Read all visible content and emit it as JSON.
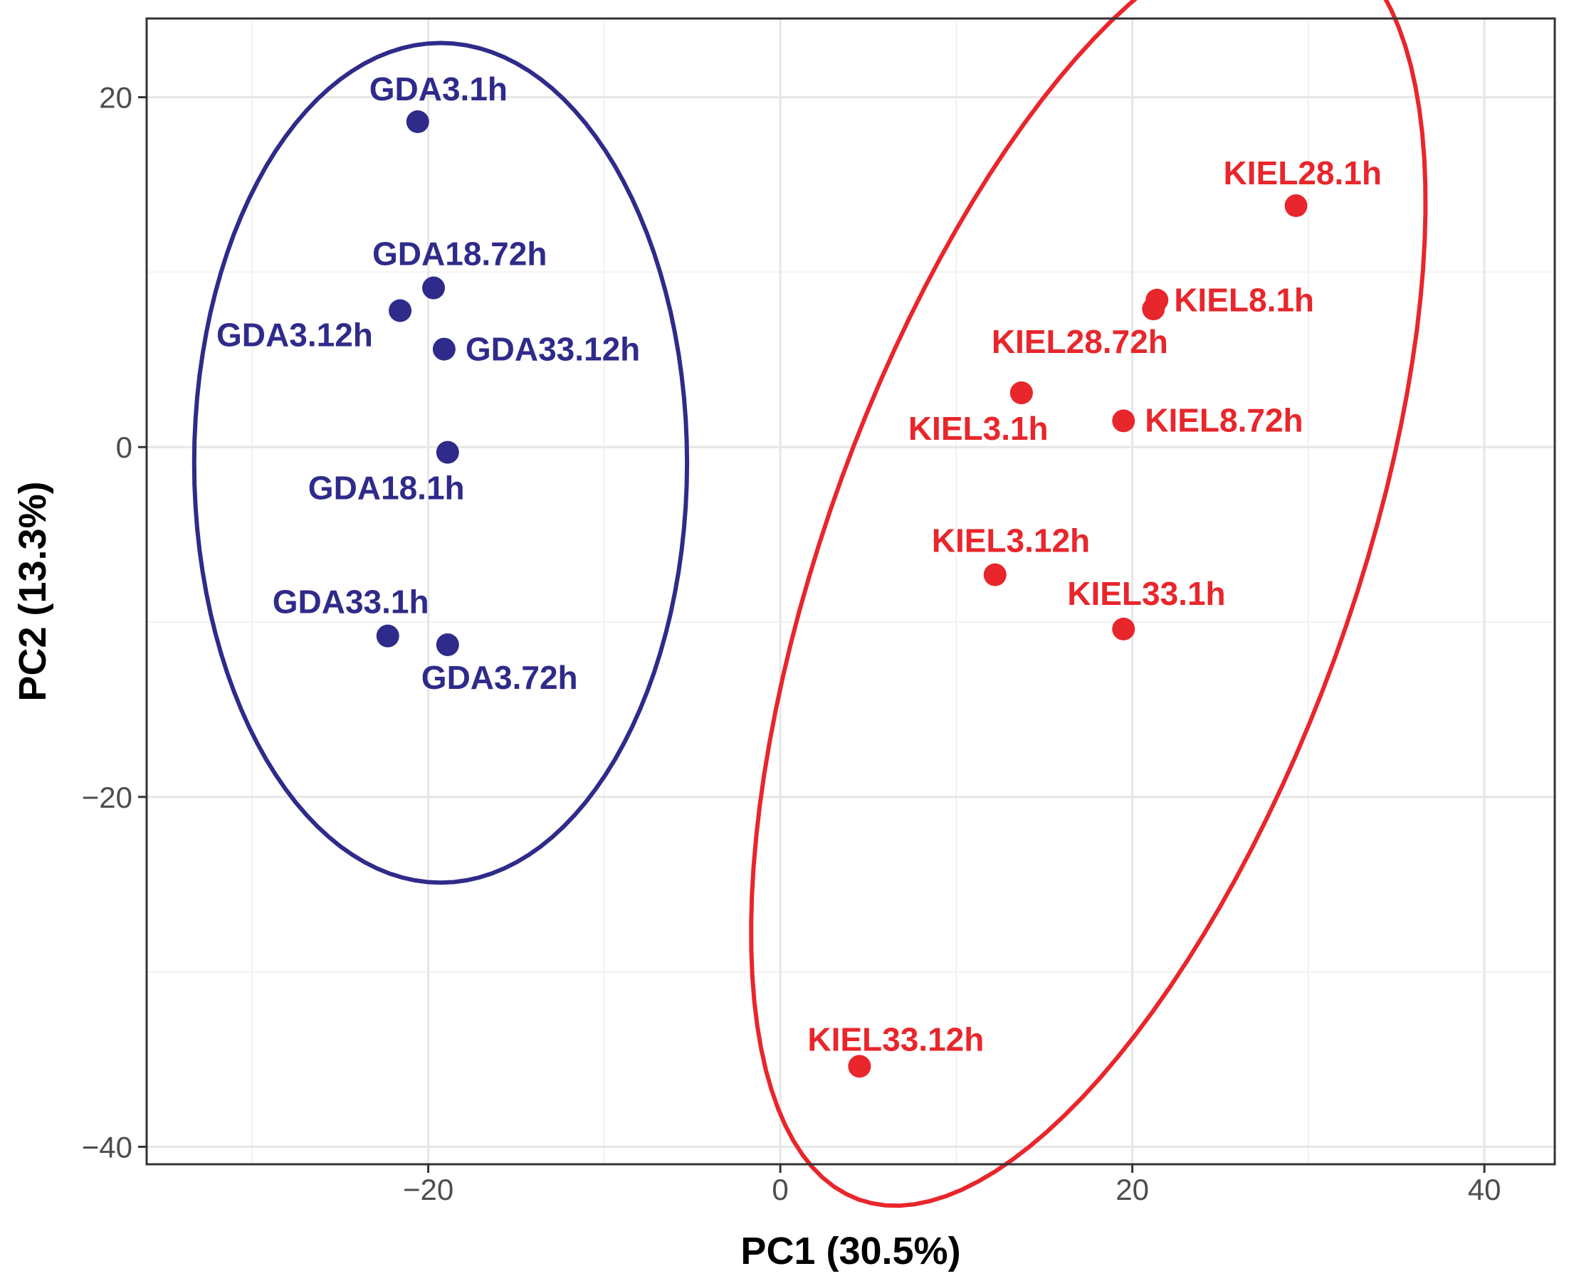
{
  "chart_data": {
    "type": "scatter",
    "title": "",
    "xlabel": "PC1 (30.5%)",
    "ylabel": "PC2 (13.3%)",
    "xlim": [
      -36,
      44
    ],
    "ylim": [
      -41,
      24.5
    ],
    "x_ticks": [
      -20,
      0,
      20,
      40
    ],
    "y_ticks": [
      -40,
      -20,
      0,
      20
    ],
    "x_tick_labels": [
      "−20",
      "0",
      "20",
      "40"
    ],
    "y_tick_labels": [
      "−40",
      "−20",
      "0",
      "20"
    ],
    "grid": true,
    "legend": "none",
    "colors": {
      "GDA": "#2e2b8a",
      "KIEL": "#e8262b"
    },
    "groups": [
      {
        "key": "GDA",
        "color": "#2e2b8a",
        "ellipse": {
          "cx": -19.3,
          "cy": -0.9,
          "rx": 14.0,
          "ry": 24.0,
          "angle": 0
        },
        "points": [
          {
            "label": "GDA3.1h",
            "x": -20.6,
            "y": 18.6
          },
          {
            "label": "GDA18.72h",
            "x": -19.7,
            "y": 9.1
          },
          {
            "label": "GDA3.12h",
            "x": -21.6,
            "y": 7.8
          },
          {
            "label": "GDA33.12h",
            "x": -19.1,
            "y": 5.6
          },
          {
            "label": "GDA18.1h",
            "x": -18.9,
            "y": -0.3
          },
          {
            "label": "GDA33.1h",
            "x": -22.3,
            "y": -10.8
          },
          {
            "label": "GDA3.72h",
            "x": -18.9,
            "y": -11.3
          }
        ]
      },
      {
        "key": "KIEL",
        "color": "#e8262b",
        "ellipse": {
          "cx": 17.5,
          "cy": -6.9,
          "rx": 38.2,
          "ry": 15.0,
          "angle": 70
        },
        "points": [
          {
            "label": "KIEL28.1h",
            "x": 29.3,
            "y": 13.8
          },
          {
            "label": "KIEL8.1h",
            "x": 21.4,
            "y": 8.4
          },
          {
            "label": "",
            "x": 21.2,
            "y": 7.9
          },
          {
            "label": "KIEL28.72h",
            "x": 13.7,
            "y": 3.1
          },
          {
            "label": "KIEL3.1h",
            "x": 13.7,
            "y": 3.1
          },
          {
            "label": "KIEL8.72h",
            "x": 19.5,
            "y": 1.5
          },
          {
            "label": "KIEL3.12h",
            "x": 12.2,
            "y": -7.3
          },
          {
            "label": "KIEL33.1h",
            "x": 19.5,
            "y": -10.4
          },
          {
            "label": "KIEL33.12h",
            "x": 4.5,
            "y": -35.4
          }
        ]
      }
    ]
  }
}
